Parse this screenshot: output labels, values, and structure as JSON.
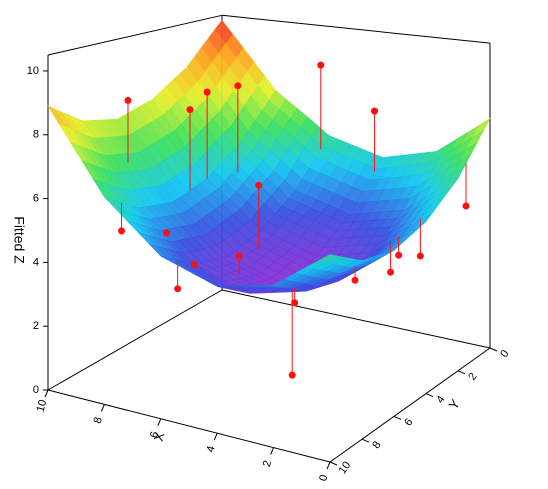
{
  "chart_data": {
    "type": "surface3d",
    "zlabel": "Fitted Z",
    "xlabel": "X",
    "ylabel": "Y",
    "xlim": [
      0,
      10
    ],
    "ylim": [
      0,
      10
    ],
    "zlim": [
      0,
      10.5
    ],
    "xticks": [
      0,
      2,
      4,
      6,
      8,
      10
    ],
    "yticks": [
      0,
      2,
      4,
      6,
      8,
      10
    ],
    "zticks": [
      0,
      2,
      4,
      6,
      8,
      10
    ],
    "colormap": [
      "#8e2fd6",
      "#3a4fe0",
      "#12c8f0",
      "#3ee05a",
      "#e6f02a",
      "#ffa21e",
      "#f02a2a"
    ],
    "surface": {
      "x": [
        0,
        2,
        4,
        6,
        8,
        10
      ],
      "y": [
        0,
        2,
        4,
        6,
        8,
        10
      ],
      "z": [
        [
          7.9,
          6.5,
          6.0,
          6.5,
          7.9,
          10.3
        ],
        [
          6.5,
          5.1,
          4.6,
          5.1,
          6.5,
          8.9
        ],
        [
          5.7,
          4.3,
          3.8,
          4.3,
          5.7,
          8.1
        ],
        [
          5.4,
          4.0,
          3.5,
          4.0,
          5.4,
          7.8
        ],
        [
          5.7,
          4.3,
          3.8,
          4.3,
          5.7,
          8.1
        ],
        [
          6.5,
          5.1,
          4.6,
          5.1,
          6.5,
          8.9
        ]
      ]
    },
    "points": {
      "color": "#ff1010",
      "x": [
        9,
        8,
        8,
        7.5,
        6,
        4,
        8,
        7,
        5.5,
        6,
        5,
        6,
        3,
        2.5,
        2,
        1,
        1,
        0.5,
        0
      ],
      "y": [
        7,
        5,
        4,
        3,
        0.5,
        0.5,
        9,
        8,
        5,
        8,
        7,
        9,
        7,
        8,
        5,
        4,
        4.5,
        3.5,
        1.5
      ],
      "z": [
        8.8,
        8.3,
        8.7,
        8.8,
        9.2,
        7.8,
        5.2,
        5.1,
        6.2,
        4.3,
        4.5,
        3.8,
        3.4,
        1.5,
        3.7,
        4.4,
        4.0,
        4.3,
        5.4
      ]
    }
  }
}
